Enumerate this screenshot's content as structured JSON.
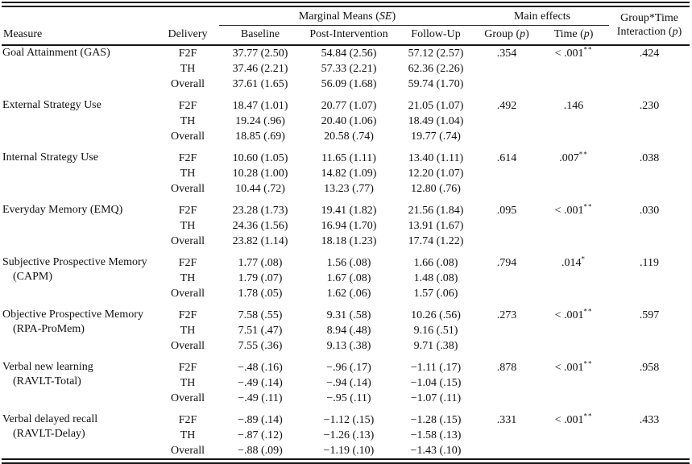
{
  "header": {
    "measure": "Measure",
    "delivery": "Delivery",
    "marginal": {
      "prefix": "Marginal Means (",
      "em": "SE",
      "suffix": ")"
    },
    "cols": [
      "Baseline",
      "Post-Intervention",
      "Follow-Up"
    ],
    "main_effects": "Main effects",
    "group": {
      "prefix": "Group (",
      "em": "p",
      "suffix": ")"
    },
    "time": {
      "prefix": "Time (",
      "em": "p",
      "suffix": ")"
    },
    "interaction": {
      "line1": "Group*Time",
      "prefix": "Interaction (",
      "em": "p",
      "suffix": ")"
    }
  },
  "groups": [
    {
      "measure": [
        "Goal Attainment (GAS)"
      ],
      "rows": [
        {
          "delivery": "F2F",
          "baseline": "37.77 (2.50)",
          "post": "54.84 (2.56)",
          "followup": "57.12 (2.57)"
        },
        {
          "delivery": "TH",
          "baseline": "37.46 (2.21)",
          "post": "57.33 (2.21)",
          "followup": "62.36 (2.26)"
        },
        {
          "delivery": "Overall",
          "baseline": "37.61 (1.65)",
          "post": "56.09 (1.68)",
          "followup": "59.74 (1.70)"
        }
      ],
      "group_p": ".354",
      "time_p": "< .001",
      "time_p_sup": "**",
      "interaction_p": ".424"
    },
    {
      "measure": [
        "External Strategy Use"
      ],
      "rows": [
        {
          "delivery": "F2F",
          "baseline": "18.47 (1.01)",
          "post": "20.77 (1.07)",
          "followup": "21.05 (1.07)"
        },
        {
          "delivery": "TH",
          "baseline": "19.24 (.96)",
          "post": "20.40 (1.06)",
          "followup": "18.49 (1.04)"
        },
        {
          "delivery": "Overall",
          "baseline": "18.85 (.69)",
          "post": "20.58 (.74)",
          "followup": "19.77 (.74)"
        }
      ],
      "group_p": ".492",
      "time_p": ".146",
      "time_p_sup": "",
      "interaction_p": ".230"
    },
    {
      "measure": [
        "Internal Strategy Use"
      ],
      "rows": [
        {
          "delivery": "F2F",
          "baseline": "10.60 (1.05)",
          "post": "11.65 (1.11)",
          "followup": "13.40 (1.11)"
        },
        {
          "delivery": "TH",
          "baseline": "10.28 (1.00)",
          "post": "14.82 (1.09)",
          "followup": "12.20 (1.07)"
        },
        {
          "delivery": "Overall",
          "baseline": "10.44 (.72)",
          "post": "13.23 (.77)",
          "followup": "12.80 (.76)"
        }
      ],
      "group_p": ".614",
      "time_p": ".007",
      "time_p_sup": "**",
      "interaction_p": ".038"
    },
    {
      "measure": [
        "Everyday Memory (EMQ)"
      ],
      "rows": [
        {
          "delivery": "F2F",
          "baseline": "23.28 (1.73)",
          "post": "19.41 (1.82)",
          "followup": "21.56 (1.84)"
        },
        {
          "delivery": "TH",
          "baseline": "24.36 (1.56)",
          "post": "16.94 (1.70)",
          "followup": "13.91 (1.67)"
        },
        {
          "delivery": "Overall",
          "baseline": "23.82 (1.14)",
          "post": "18.18 (1.23)",
          "followup": "17.74 (1.22)"
        }
      ],
      "group_p": ".095",
      "time_p": "< .001",
      "time_p_sup": "**",
      "interaction_p": ".030"
    },
    {
      "measure": [
        "Subjective Prospective Memory",
        "(CAPM)"
      ],
      "rows": [
        {
          "delivery": "F2F",
          "baseline": "1.77 (.08)",
          "post": "1.56 (.08)",
          "followup": "1.66 (.08)"
        },
        {
          "delivery": "TH",
          "baseline": "1.79 (.07)",
          "post": "1.67 (.08)",
          "followup": "1.48 (.08)"
        },
        {
          "delivery": "Overall",
          "baseline": "1.78 (.05)",
          "post": "1.62 (.06)",
          "followup": "1.57 (.06)"
        }
      ],
      "group_p": ".794",
      "time_p": ".014",
      "time_p_sup": "*",
      "interaction_p": ".119"
    },
    {
      "measure": [
        "Objective Prospective Memory",
        "(RPA-ProMem)"
      ],
      "rows": [
        {
          "delivery": "F2F",
          "baseline": "7.58 (.55)",
          "post": "9.31 (.58)",
          "followup": "10.26 (.56)"
        },
        {
          "delivery": "TH",
          "baseline": "7.51 (.47)",
          "post": "8.94 (.48)",
          "followup": "9.16 (.51)"
        },
        {
          "delivery": "Overall",
          "baseline": "7.55 (.36)",
          "post": "9.13 (.38)",
          "followup": "9.71 (.38)"
        }
      ],
      "group_p": ".273",
      "time_p": "< .001",
      "time_p_sup": "**",
      "interaction_p": ".597"
    },
    {
      "measure": [
        "Verbal new learning",
        "(RAVLT-Total)"
      ],
      "rows": [
        {
          "delivery": "F2F",
          "baseline": "−.48 (.16)",
          "post": "−.96 (.17)",
          "followup": "−1.11 (.17)"
        },
        {
          "delivery": "TH",
          "baseline": "−.49 (.14)",
          "post": "−.94 (.14)",
          "followup": "−1.04 (.15)"
        },
        {
          "delivery": "Overall",
          "baseline": "−.49 (.11)",
          "post": "−.95 (.11)",
          "followup": "−1.07 (.11)"
        }
      ],
      "group_p": ".878",
      "time_p": "< .001",
      "time_p_sup": "**",
      "interaction_p": ".958"
    },
    {
      "measure": [
        "Verbal delayed recall",
        "(RAVLT-Delay)"
      ],
      "rows": [
        {
          "delivery": "F2F",
          "baseline": "−.89 (.14)",
          "post": "−1.12 (.15)",
          "followup": "−1.28 (.15)"
        },
        {
          "delivery": "TH",
          "baseline": "−.87 (.12)",
          "post": "−1.26 (.13)",
          "followup": "−1.58 (.13)"
        },
        {
          "delivery": "Overall",
          "baseline": "−.88 (.09)",
          "post": "−1.19 (.10)",
          "followup": "−1.43 (.10)"
        }
      ],
      "group_p": ".331",
      "time_p": "< .001",
      "time_p_sup": "**",
      "interaction_p": ".433"
    }
  ]
}
